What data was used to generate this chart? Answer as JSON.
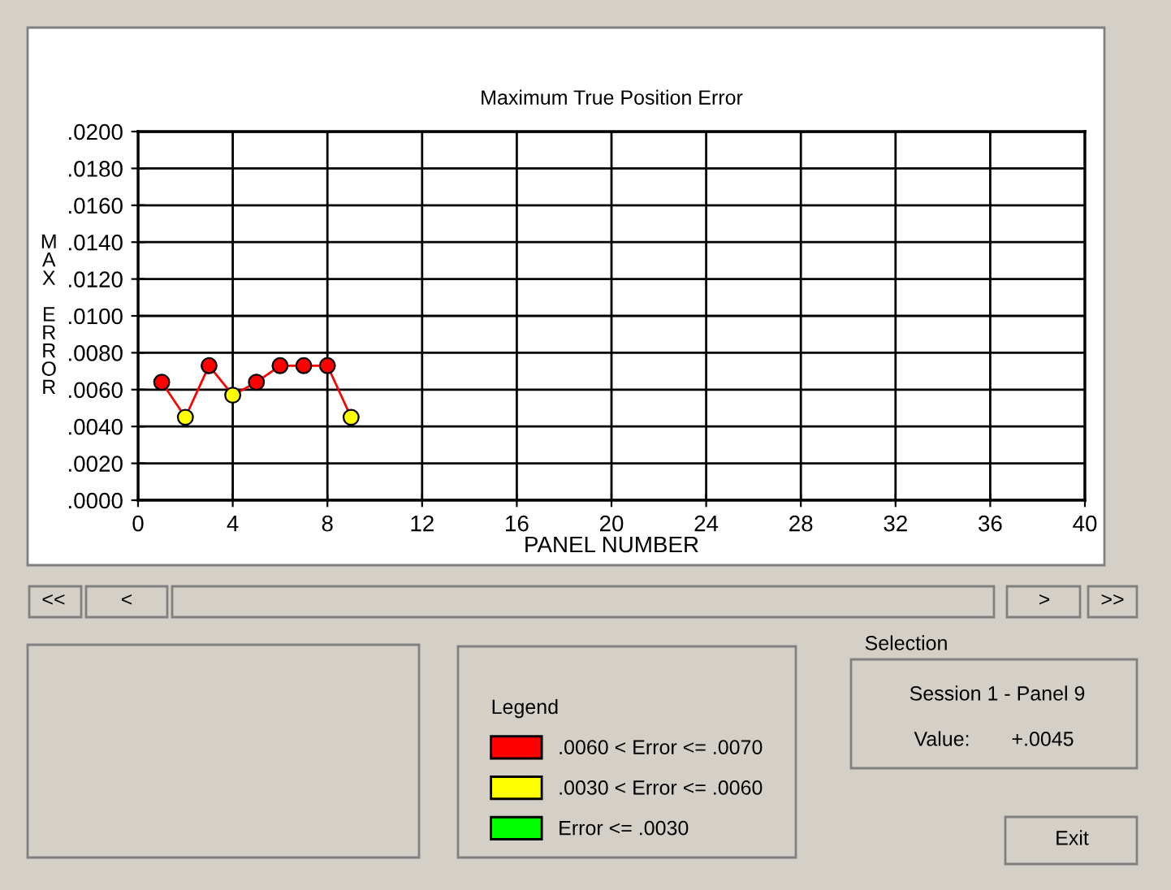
{
  "chart_data": {
    "type": "line",
    "title": "Maximum True Position Error",
    "xlabel": "PANEL NUMBER",
    "ylabel": "MAX ERROR",
    "x": [
      1,
      2,
      3,
      4,
      5,
      6,
      7,
      8,
      9
    ],
    "series": [
      {
        "color": "#ff0000",
        "values": [
          0.0064,
          0.0045,
          0.0073,
          0.0057,
          0.0064,
          0.0073,
          0.0073,
          0.0073,
          0.0045
        ],
        "marker": "none"
      },
      {
        "type": "scatter",
        "name": ".0060 < Error <= .0070",
        "color": "#ff0000",
        "values": [
          0.0064,
          null,
          0.0073,
          null,
          0.0064,
          0.0073,
          0.0073,
          0.0073,
          null
        ],
        "marker": "circle"
      },
      {
        "type": "scatter",
        "name": ".0030 < Error <= .0060",
        "color": "#ffff00",
        "values": [
          null,
          0.0045,
          null,
          0.0057,
          null,
          null,
          null,
          null,
          0.0045
        ],
        "marker": "circle"
      },
      {
        "type": "scatter",
        "name": "Error <= .0030",
        "color": "#00ff00",
        "values": [
          null,
          null,
          null,
          null,
          null,
          null,
          null,
          null,
          null
        ],
        "marker": "circle"
      }
    ],
    "xlim": [
      0,
      40
    ],
    "xticks": [
      0,
      4,
      8,
      12,
      16,
      20,
      24,
      28,
      32,
      36,
      40
    ],
    "ylim": [
      0,
      0.02
    ],
    "yticks": [
      {
        "value": 0,
        "label": ".0000"
      },
      {
        "value": 0.002,
        "label": ".0020"
      },
      {
        "value": 0.004,
        "label": ".0040"
      },
      {
        "value": 0.006,
        "label": ".0060"
      },
      {
        "value": 0.008,
        "label": ".0080"
      },
      {
        "value": 0.01,
        "label": ".0100"
      },
      {
        "value": 0.012,
        "label": ".0120"
      },
      {
        "value": 0.014,
        "label": ".0140"
      },
      {
        "value": 0.016,
        "label": ".0160"
      },
      {
        "value": 0.018,
        "label": ".0180"
      },
      {
        "value": 0.02,
        "label": ".0200"
      }
    ],
    "grid": true,
    "legend": "bottom",
    "legend_title": "Legend",
    "annotations": [
      "<<",
      "<",
      ">",
      ">>",
      "Selection",
      "Session 1 - Panel 9",
      "Value:",
      "+.0045",
      "Exit"
    ]
  }
}
